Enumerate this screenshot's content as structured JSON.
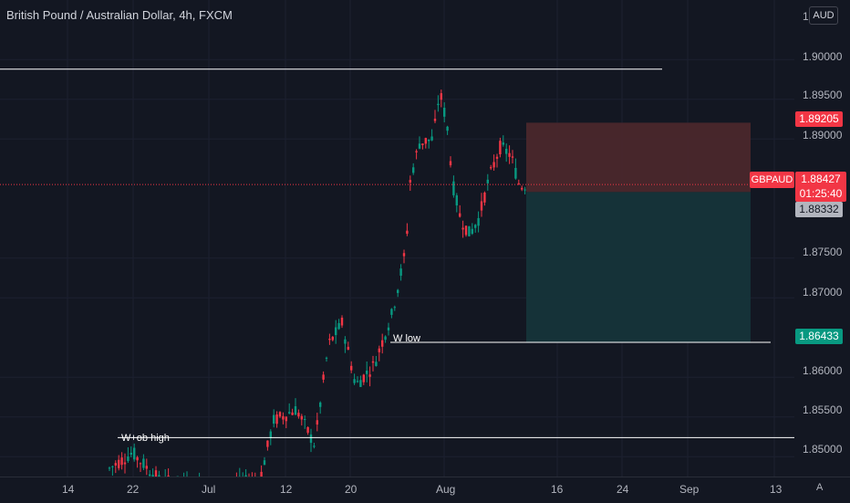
{
  "header": {
    "title": "British Pound / Australian Dollar, 4h, FXCM"
  },
  "currency_button": "AUD",
  "price_scale": {
    "ticks": [
      {
        "label": "1.90000",
        "value": 1.9
      },
      {
        "label": "1.89500",
        "value": 1.895
      },
      {
        "label": "1.89000",
        "value": 1.89
      },
      {
        "label": "1.87500",
        "value": 1.875
      },
      {
        "label": "1.87000",
        "value": 1.87
      },
      {
        "label": "1.86000",
        "value": 1.86
      },
      {
        "label": "1.85500",
        "value": 1.855
      },
      {
        "label": "1.85000",
        "value": 1.85
      }
    ],
    "partial_top": "1"
  },
  "badges": {
    "stop_loss": {
      "label": "1.89205",
      "value": 1.89205,
      "color": "#f23645"
    },
    "symbol": "GBPAUD",
    "current_price": {
      "label": "1.88427",
      "value": 1.88427,
      "countdown": "01:25:40",
      "color": "#f23645"
    },
    "entry": {
      "label": "1.88332",
      "value": 1.88332,
      "color": "#b2b5be"
    },
    "take_profit": {
      "label": "1.86433",
      "value": 1.86433,
      "color": "#089981"
    }
  },
  "time_scale": {
    "labels": [
      "14",
      "22",
      "Jul",
      "12",
      "20",
      "Aug",
      "16",
      "24",
      "Sep",
      "13"
    ],
    "corner": "A"
  },
  "annotations": {
    "w_low": "W low",
    "wob_high": "W+ob high"
  },
  "colors": {
    "background": "#131722",
    "bull": "#089981",
    "bear": "#f23645",
    "risk_zone": "#4a272c",
    "reward_zone": "#15343a"
  },
  "chart_data": {
    "type": "candlestick",
    "symbol": "GBPAUD",
    "timeframe": "4h",
    "ylim": [
      1.8475,
      1.9075
    ],
    "key_prices": [
      1.89205,
      1.88427,
      1.88332,
      1.86433
    ],
    "horizontal_levels": [
      1.8988,
      1.8644,
      1.8524
    ]
  }
}
